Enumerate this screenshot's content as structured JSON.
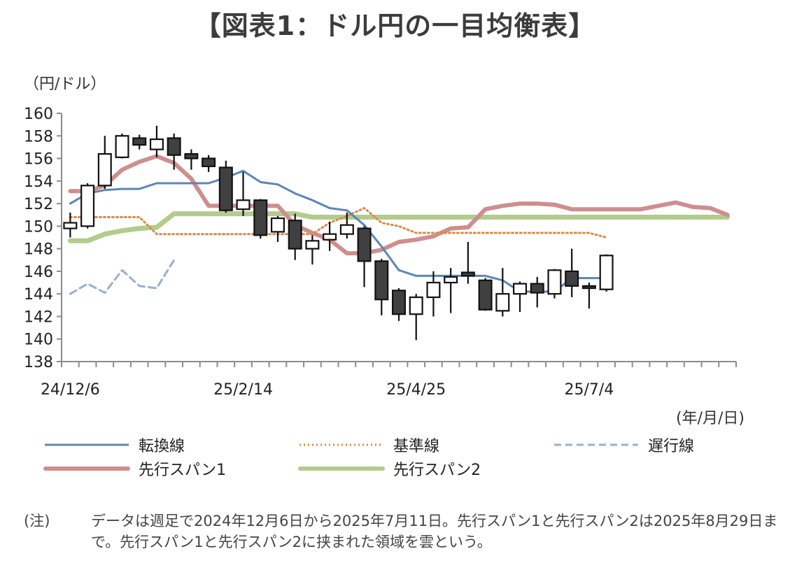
{
  "title": "【図表1：ドル円の一目均衡表】",
  "y_unit": "（円/ドル）",
  "x_unit": "(年/月/日)",
  "note_label": "(注)",
  "note_text": "データは週足で2024年12月6日から2025年7月11日。先行スパン1と先行スパン2は2025年8月29日まで。先行スパン1と先行スパン2に挟まれた領域を雲という。",
  "legend": [
    {
      "label": "転換線",
      "series": "tenkan"
    },
    {
      "label": "基準線",
      "series": "kijun"
    },
    {
      "label": "遅行線",
      "series": "chikou"
    },
    {
      "label": "先行スパン1",
      "series": "span1"
    },
    {
      "label": "先行スパン2",
      "series": "span2"
    }
  ],
  "chart_data": {
    "type": "candlestick",
    "ylim": [
      138,
      160
    ],
    "y_ticks": [
      138,
      140,
      142,
      144,
      146,
      148,
      150,
      152,
      154,
      156,
      158,
      160
    ],
    "x_tick_labels": [
      {
        "index": 0,
        "label": "24/12/6"
      },
      {
        "index": 10,
        "label": "25/2/14"
      },
      {
        "index": 20,
        "label": "25/4/25"
      },
      {
        "index": 30,
        "label": "25/7/4"
      }
    ],
    "num_periods": 39,
    "candles": [
      {
        "o": 149.8,
        "h": 151.2,
        "l": 149.0,
        "c": 150.3
      },
      {
        "o": 150.0,
        "h": 153.8,
        "l": 149.8,
        "c": 153.6
      },
      {
        "o": 153.6,
        "h": 158.0,
        "l": 153.3,
        "c": 156.4
      },
      {
        "o": 156.1,
        "h": 158.2,
        "l": 156.0,
        "c": 158.0
      },
      {
        "o": 157.8,
        "h": 158.1,
        "l": 156.8,
        "c": 157.2
      },
      {
        "o": 156.8,
        "h": 158.9,
        "l": 156.1,
        "c": 157.7
      },
      {
        "o": 157.8,
        "h": 158.2,
        "l": 155.0,
        "c": 156.3
      },
      {
        "o": 156.4,
        "h": 156.8,
        "l": 155.0,
        "c": 156.0
      },
      {
        "o": 156.0,
        "h": 156.3,
        "l": 154.8,
        "c": 155.3
      },
      {
        "o": 155.2,
        "h": 155.8,
        "l": 151.2,
        "c": 151.4
      },
      {
        "o": 151.5,
        "h": 154.8,
        "l": 150.9,
        "c": 152.3
      },
      {
        "o": 152.3,
        "h": 152.4,
        "l": 148.9,
        "c": 149.2
      },
      {
        "o": 149.5,
        "h": 150.9,
        "l": 148.6,
        "c": 150.7
      },
      {
        "o": 150.5,
        "h": 151.1,
        "l": 147.0,
        "c": 148.0
      },
      {
        "o": 148.0,
        "h": 149.2,
        "l": 146.6,
        "c": 148.7
      },
      {
        "o": 148.8,
        "h": 150.4,
        "l": 147.8,
        "c": 149.3
      },
      {
        "o": 149.3,
        "h": 151.2,
        "l": 148.9,
        "c": 150.1
      },
      {
        "o": 149.8,
        "h": 150.0,
        "l": 144.6,
        "c": 146.9
      },
      {
        "o": 146.9,
        "h": 147.1,
        "l": 142.1,
        "c": 143.5
      },
      {
        "o": 144.3,
        "h": 144.5,
        "l": 141.6,
        "c": 142.2
      },
      {
        "o": 142.2,
        "h": 144.0,
        "l": 139.9,
        "c": 143.7
      },
      {
        "o": 143.7,
        "h": 146.0,
        "l": 142.0,
        "c": 145.0
      },
      {
        "o": 145.0,
        "h": 146.3,
        "l": 142.3,
        "c": 145.5
      },
      {
        "o": 145.9,
        "h": 148.6,
        "l": 144.9,
        "c": 145.6
      },
      {
        "o": 145.2,
        "h": 145.4,
        "l": 142.5,
        "c": 142.6
      },
      {
        "o": 142.5,
        "h": 146.3,
        "l": 142.0,
        "c": 144.0
      },
      {
        "o": 144.0,
        "h": 145.1,
        "l": 142.4,
        "c": 144.9
      },
      {
        "o": 144.9,
        "h": 145.5,
        "l": 142.8,
        "c": 144.1
      },
      {
        "o": 144.0,
        "h": 146.2,
        "l": 143.6,
        "c": 146.1
      },
      {
        "o": 146.0,
        "h": 148.0,
        "l": 143.7,
        "c": 144.7
      },
      {
        "o": 144.7,
        "h": 145.0,
        "l": 142.7,
        "c": 144.5
      },
      {
        "o": 144.4,
        "h": 147.5,
        "l": 144.2,
        "c": 147.4
      }
    ],
    "series": {
      "tenkan": [
        [
          0,
          152.0
        ],
        [
          1,
          152.9
        ],
        [
          2,
          153.2
        ],
        [
          3,
          153.3
        ],
        [
          4,
          153.3
        ],
        [
          5,
          153.8
        ],
        [
          6,
          153.8
        ],
        [
          7,
          153.8
        ],
        [
          8,
          153.8
        ],
        [
          9,
          154.3
        ],
        [
          10,
          154.9
        ],
        [
          11,
          153.9
        ],
        [
          12,
          153.7
        ],
        [
          13,
          152.9
        ],
        [
          14,
          152.3
        ],
        [
          15,
          151.6
        ],
        [
          16,
          151.4
        ],
        [
          17,
          150.1
        ],
        [
          18,
          148.2
        ],
        [
          19,
          146.1
        ],
        [
          20,
          145.6
        ],
        [
          21,
          145.6
        ],
        [
          22,
          145.6
        ],
        [
          23,
          145.6
        ],
        [
          24,
          145.6
        ],
        [
          25,
          145.2
        ],
        [
          26,
          144.2
        ],
        [
          27,
          144.2
        ],
        [
          28,
          144.2
        ],
        [
          29,
          145.4
        ],
        [
          30,
          145.4
        ],
        [
          31,
          145.4
        ]
      ],
      "kijun": [
        [
          0,
          150.8
        ],
        [
          1,
          150.8
        ],
        [
          2,
          150.8
        ],
        [
          3,
          150.8
        ],
        [
          4,
          150.8
        ],
        [
          5,
          149.3
        ],
        [
          6,
          149.3
        ],
        [
          7,
          149.3
        ],
        [
          8,
          149.3
        ],
        [
          9,
          149.3
        ],
        [
          10,
          149.3
        ],
        [
          11,
          149.3
        ],
        [
          12,
          149.3
        ],
        [
          13,
          149.3
        ],
        [
          14,
          149.3
        ],
        [
          15,
          150.3
        ],
        [
          16,
          150.9
        ],
        [
          17,
          151.6
        ],
        [
          18,
          150.3
        ],
        [
          19,
          150.0
        ],
        [
          20,
          149.4
        ],
        [
          21,
          149.4
        ],
        [
          22,
          149.4
        ],
        [
          23,
          149.4
        ],
        [
          24,
          149.4
        ],
        [
          25,
          149.4
        ],
        [
          26,
          149.4
        ],
        [
          27,
          149.4
        ],
        [
          28,
          149.4
        ],
        [
          29,
          149.4
        ],
        [
          30,
          149.4
        ],
        [
          31,
          149.0
        ]
      ],
      "chikou": [
        [
          0,
          144.0
        ],
        [
          1,
          144.9
        ],
        [
          2,
          144.1
        ],
        [
          3,
          146.1
        ],
        [
          4,
          144.7
        ],
        [
          5,
          144.5
        ],
        [
          6,
          147.0
        ]
      ],
      "span1": [
        [
          0,
          153.1
        ],
        [
          1,
          153.1
        ],
        [
          2,
          153.6
        ],
        [
          3,
          155.0
        ],
        [
          4,
          155.7
        ],
        [
          5,
          156.2
        ],
        [
          6,
          155.6
        ],
        [
          7,
          154.2
        ],
        [
          8,
          151.8
        ],
        [
          9,
          151.8
        ],
        [
          10,
          151.8
        ],
        [
          11,
          151.8
        ],
        [
          12,
          151.8
        ],
        [
          13,
          150.1
        ],
        [
          14,
          149.4
        ],
        [
          15,
          148.8
        ],
        [
          16,
          147.6
        ],
        [
          17,
          147.6
        ],
        [
          18,
          147.9
        ],
        [
          19,
          148.6
        ],
        [
          20,
          148.8
        ],
        [
          21,
          149.1
        ],
        [
          22,
          149.8
        ],
        [
          23,
          149.9
        ],
        [
          24,
          151.5
        ],
        [
          25,
          151.8
        ],
        [
          26,
          152.0
        ],
        [
          27,
          152.0
        ],
        [
          28,
          151.9
        ],
        [
          29,
          151.5
        ],
        [
          30,
          151.5
        ],
        [
          31,
          151.5
        ],
        [
          32,
          151.5
        ],
        [
          33,
          151.5
        ],
        [
          34,
          151.8
        ],
        [
          35,
          152.1
        ],
        [
          36,
          151.7
        ],
        [
          37,
          151.6
        ],
        [
          38,
          151.0
        ]
      ],
      "span2": [
        [
          0,
          148.7
        ],
        [
          1,
          148.7
        ],
        [
          2,
          149.3
        ],
        [
          3,
          149.6
        ],
        [
          4,
          149.8
        ],
        [
          5,
          149.9
        ],
        [
          6,
          151.1
        ],
        [
          7,
          151.1
        ],
        [
          8,
          151.1
        ],
        [
          9,
          151.1
        ],
        [
          10,
          151.1
        ],
        [
          11,
          151.1
        ],
        [
          12,
          151.1
        ],
        [
          13,
          151.1
        ],
        [
          14,
          150.8
        ],
        [
          15,
          150.8
        ],
        [
          16,
          150.8
        ],
        [
          17,
          150.8
        ],
        [
          18,
          150.8
        ],
        [
          19,
          150.8
        ],
        [
          20,
          150.8
        ],
        [
          21,
          150.8
        ],
        [
          22,
          150.8
        ],
        [
          23,
          150.8
        ],
        [
          24,
          150.8
        ],
        [
          25,
          150.8
        ],
        [
          26,
          150.8
        ],
        [
          27,
          150.8
        ],
        [
          28,
          150.8
        ],
        [
          29,
          150.8
        ],
        [
          30,
          150.8
        ],
        [
          31,
          150.8
        ],
        [
          32,
          150.8
        ],
        [
          33,
          150.8
        ],
        [
          34,
          150.8
        ],
        [
          35,
          150.8
        ],
        [
          36,
          150.8
        ],
        [
          37,
          150.8
        ],
        [
          38,
          150.8
        ]
      ]
    },
    "colors": {
      "tenkan": "#5b86b5",
      "kijun": "#d98a4a",
      "chikou": "#98b0cf",
      "span1": "#cf8e8e",
      "span2": "#b2cc8c",
      "bull_fill": "#ffffff",
      "bear_fill": "#404040",
      "candle_edge": "#111111"
    }
  }
}
